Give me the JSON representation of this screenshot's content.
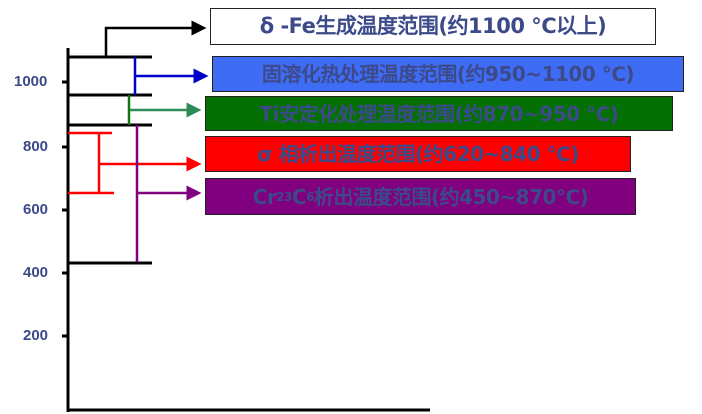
{
  "axis": {
    "ticks": [
      "1000",
      "800",
      "600",
      "400",
      "200"
    ]
  },
  "ranges": [
    {
      "id": "delta-fe",
      "text": "δ -Fe生成温度范围(约1100 ℃以上)",
      "color": "#ffffff",
      "line_color": "#000000"
    },
    {
      "id": "solution",
      "text": "固溶化热处理温度范围(约950~1100 ℃)",
      "color": "#3f6cf5",
      "line_color": "#0000cc"
    },
    {
      "id": "ti-stabilize",
      "text": "Ti安定化处理温度范围(约870~950 ℃)",
      "color": "#047004",
      "line_color": "#2e8b57"
    },
    {
      "id": "sigma",
      "text": "σ 相析出温度范围(约620~840 ℃)",
      "color": "#ff0000",
      "line_color": "#ff0000"
    },
    {
      "id": "carbide",
      "text_prefix": "Cr",
      "sub1": "23",
      "mid": "C",
      "sub2": "6",
      "text_suffix": "析出温度范围(约450~870℃)",
      "color": "#800080",
      "line_color": "#800080"
    }
  ]
}
